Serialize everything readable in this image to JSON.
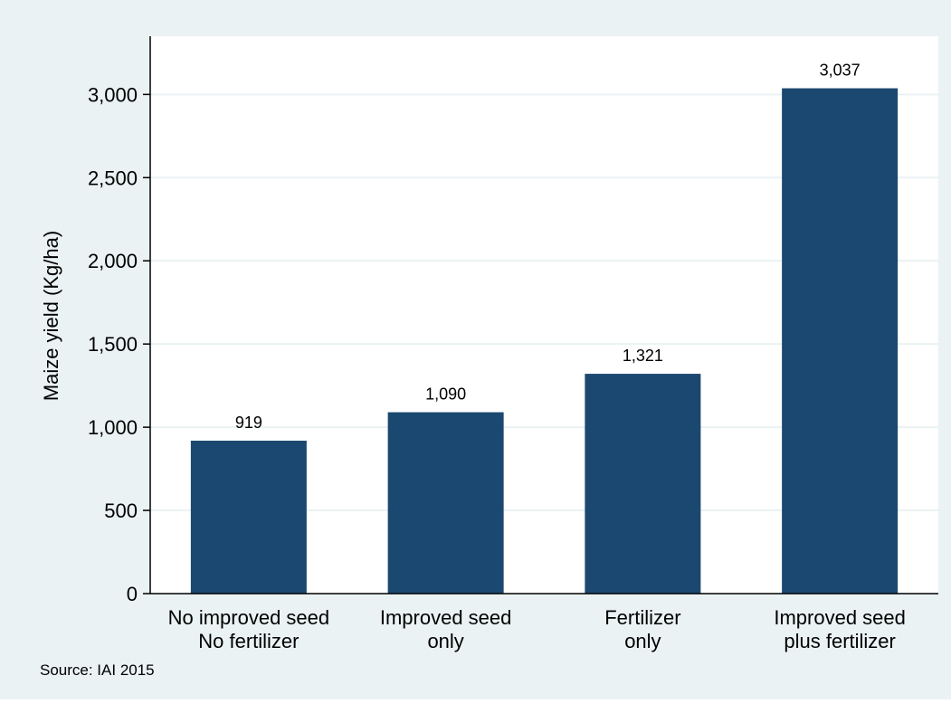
{
  "chart_data": {
    "type": "bar",
    "categories": [
      [
        "No improved seed",
        "No fertilizer"
      ],
      [
        "Improved seed",
        "only"
      ],
      [
        "Fertilizer",
        "only"
      ],
      [
        "Improved seed",
        "plus fertilizer"
      ]
    ],
    "values": [
      919,
      1090,
      1321,
      3037
    ],
    "value_labels": [
      "919",
      "1,090",
      "1,321",
      "3,037"
    ],
    "ylabel": "Maize yield (Kg/ha)",
    "ylim": [
      0,
      3350
    ],
    "yticks": [
      0,
      500,
      1000,
      1500,
      2000,
      2500,
      3000
    ],
    "ytick_labels": [
      "0",
      "500",
      "1,000",
      "1,500",
      "2,000",
      "2,500",
      "3,000"
    ],
    "grid": true,
    "legend": "none",
    "note": "Source: IAI 2015",
    "colors": {
      "bar": "#1b4870",
      "frame_bg": "#eaf2f3",
      "plot_bg": "#ffffff",
      "grid": "#eaf2f3",
      "axis": "#000000"
    }
  }
}
